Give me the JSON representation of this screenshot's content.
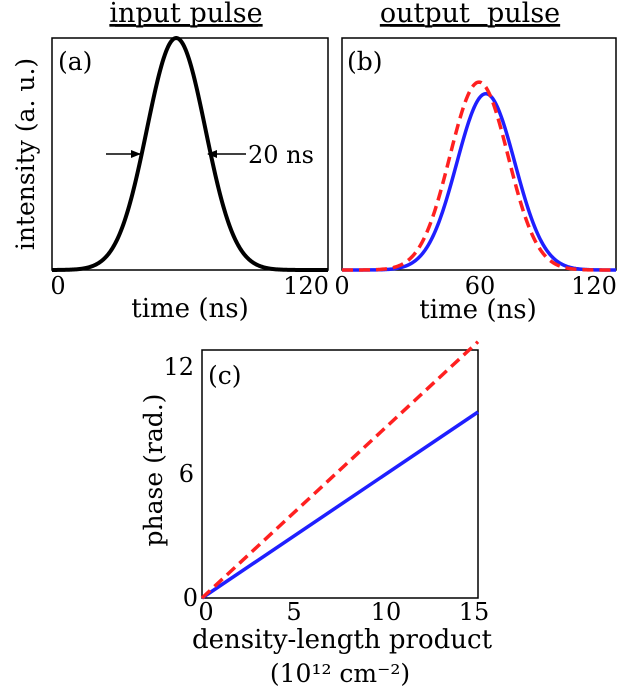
{
  "chart_data": [
    {
      "type": "line",
      "panel_label": "(a)",
      "title": "input pulse",
      "xlabel": "time (ns)",
      "ylabel": "intensity (a. u.)",
      "xlim": [
        0,
        120
      ],
      "x_ticks": [
        "0",
        "120"
      ],
      "ylim": [
        0,
        1
      ],
      "annotation": "20 ns",
      "series": [
        {
          "name": "",
          "color": "#000000",
          "style": "solid",
          "gaussian": {
            "center": 54,
            "fwhm": 30,
            "amplitude": 1.0
          }
        }
      ]
    },
    {
      "type": "line",
      "panel_label": "(b)",
      "title": "output  pulse",
      "xlabel": "time (ns)",
      "xlim": [
        0,
        120
      ],
      "x_ticks": [
        "0",
        "60",
        "120"
      ],
      "ylim": [
        0,
        1
      ],
      "series": [
        {
          "name": "",
          "color": "#1f1fff",
          "style": "solid",
          "gaussian": {
            "center": 63,
            "fwhm": 30,
            "amplitude": 0.76
          }
        },
        {
          "name": "",
          "color": "#ff2020",
          "style": "dashed",
          "gaussian": {
            "center": 60,
            "fwhm": 30,
            "amplitude": 0.81
          }
        }
      ]
    },
    {
      "type": "line",
      "panel_label": "(c)",
      "xlabel": "density-length product",
      "xlabel_unit": "(10¹² cm⁻²)",
      "ylabel": "phase (rad.)",
      "xlim": [
        0,
        15
      ],
      "ylim": [
        0,
        12
      ],
      "x_ticks": [
        "0",
        "5",
        "10",
        "15"
      ],
      "y_ticks": [
        "0",
        "6",
        "12"
      ],
      "series": [
        {
          "name": "",
          "color": "#1f1fff",
          "style": "solid",
          "x": [
            0,
            15
          ],
          "y": [
            0,
            9.0
          ]
        },
        {
          "name": "",
          "color": "#ff2020",
          "style": "dashed",
          "x": [
            0,
            15
          ],
          "y": [
            0,
            12.4
          ]
        }
      ]
    }
  ]
}
